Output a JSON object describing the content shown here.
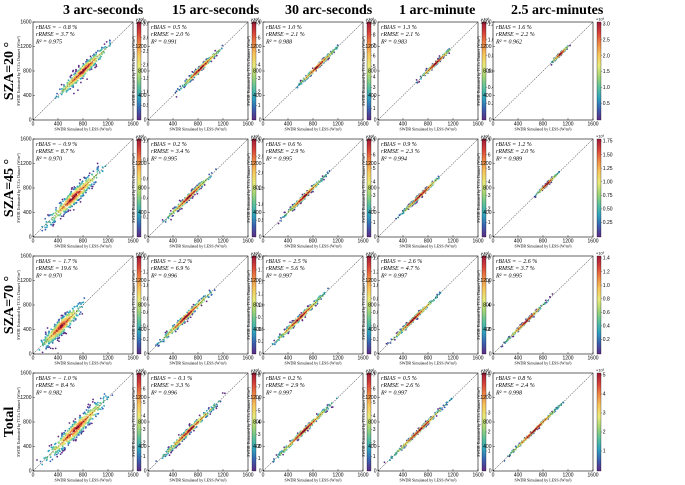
{
  "figure": {
    "columns": [
      "3 arc-seconds",
      "15 arc-seconds",
      "30 arc-seconds",
      "1 arc-minute",
      "2.5 arc-minutes"
    ],
    "rows": [
      "SZA=20 °",
      "SZA=45 °",
      "SZA=70 °",
      "Total"
    ],
    "xlabel": "SWDR Simulated by LESS (W/m²)",
    "ylabel": "SWDR Estimated by TCCs Dataset (W/m²)",
    "axis_ticks": [
      "0",
      "400",
      "800",
      "1200",
      "1600"
    ],
    "colorbar_exponent": "×10³",
    "stat_labels": {
      "rbias": "rBIAS = ",
      "rrmse": "rRMSE = ",
      "r2": "R² = "
    },
    "colormap": [
      "#5e2a84",
      "#3b5fb0",
      "#2fa3c0",
      "#5cc29b",
      "#a4d676",
      "#e8ea7a",
      "#f7c65c",
      "#f08a46",
      "#d8433a",
      "#9e1b3b"
    ]
  },
  "chart_data": {
    "type": "scatter",
    "subtype": "density_scatter_grid",
    "xlim": [
      0,
      1600
    ],
    "ylim": [
      0,
      1600
    ],
    "panels": [
      {
        "row": "SZA=20 °",
        "column": "3 arc-seconds",
        "rBIAS": "− 0.8 %",
        "rRMSE": "3.7 %",
        "R2": "0.975",
        "x_range": [
          250,
          1350
        ],
        "spread": 55,
        "colorbar_ticks": [
          "0.5",
          "1.0",
          "1.5",
          "2.0",
          "2.5",
          "3.0",
          "3.5"
        ],
        "colorbar_max": "3.5"
      },
      {
        "row": "SZA=20 °",
        "column": "15 arc-seconds",
        "rBIAS": "0.5 %",
        "rRMSE": "2.0 %",
        "R2": "0.991",
        "x_range": [
          380,
          1300
        ],
        "spread": 26,
        "colorbar_ticks": [
          "1",
          "2",
          "3",
          "4",
          "5",
          "6",
          "7"
        ],
        "colorbar_max": "7"
      },
      {
        "row": "SZA=20 °",
        "column": "30 arc-seconds",
        "rBIAS": "1.0 %",
        "rRMSE": "2.1 %",
        "R2": "0.988",
        "x_range": [
          450,
          1300
        ],
        "spread": 20,
        "colorbar_ticks": [
          "1",
          "2",
          "3",
          "4",
          "5",
          "6",
          "7",
          "8",
          "9"
        ],
        "colorbar_max": "9"
      },
      {
        "row": "SZA=20 °",
        "column": "1 arc-minute",
        "rBIAS": "1.3 %",
        "rRMSE": "2.1 %",
        "R2": "0.983",
        "x_range": [
          560,
          1280
        ],
        "spread": 16,
        "colorbar_ticks": [
          "0.2",
          "0.4",
          "0.6",
          "0.8",
          "1.0",
          "1.2"
        ],
        "colorbar_max": "1.2"
      },
      {
        "row": "SZA=20 °",
        "column": "2.5 arc-minutes",
        "rBIAS": "1.6 %",
        "rRMSE": "2.2 %",
        "R2": "0.962",
        "x_range": [
          900,
          1260
        ],
        "spread": 12,
        "colorbar_ticks": [
          "0.5",
          "1.0",
          "1.5",
          "2.0",
          "2.5",
          "3.0"
        ],
        "colorbar_max": "3.0"
      },
      {
        "row": "SZA=45 °",
        "column": "3 arc-seconds",
        "rBIAS": "− 0.9 %",
        "rRMSE": "8.7 %",
        "R2": "0.970",
        "x_range": [
          50,
          1250
        ],
        "spread": 70,
        "colorbar_ticks": [
          "0.2",
          "0.4",
          "0.6",
          "0.8",
          "1.0"
        ],
        "colorbar_max": "1.0"
      },
      {
        "row": "SZA=45 °",
        "column": "15 arc-seconds",
        "rBIAS": "0.2 %",
        "rRMSE": "3.4 %",
        "R2": "0.995",
        "x_range": [
          150,
          1150
        ],
        "spread": 28,
        "colorbar_ticks": [
          "0.5",
          "1.0",
          "1.5",
          "2.0",
          "2.5",
          "3.0"
        ],
        "colorbar_max": "3.0"
      },
      {
        "row": "SZA=45 °",
        "column": "30 arc-seconds",
        "rBIAS": "0.6 %",
        "rRMSE": "2.9 %",
        "R2": "0.995",
        "x_range": [
          200,
          1120
        ],
        "spread": 22,
        "colorbar_ticks": [
          "1",
          "2",
          "3",
          "4",
          "5",
          "6",
          "7"
        ],
        "colorbar_max": "7"
      },
      {
        "row": "SZA=45 °",
        "column": "1 arc-minute",
        "rBIAS": "0.9 %",
        "rRMSE": "2.3 %",
        "R2": "0.994",
        "x_range": [
          250,
          1120
        ],
        "spread": 18,
        "colorbar_ticks": [
          "1",
          "2",
          "3",
          "4",
          "5",
          "6",
          "7"
        ],
        "colorbar_max": "7"
      },
      {
        "row": "SZA=45 °",
        "column": "2.5 arc-minutes",
        "rBIAS": "1.2 %",
        "rRMSE": "2.0 %",
        "R2": "0.989",
        "x_range": [
          620,
          1100
        ],
        "spread": 12,
        "colorbar_ticks": [
          "0.25",
          "0.50",
          "0.75",
          "1.00",
          "1.25",
          "1.50",
          "1.75"
        ],
        "colorbar_max": "1.75"
      },
      {
        "row": "SZA=70 °",
        "column": "3 arc-seconds",
        "rBIAS": "− 1.7 %",
        "rRMSE": "19.6 %",
        "R2": "0.970",
        "x_range": [
          20,
          900
        ],
        "spread": 75,
        "colorbar_ticks": [
          "0.2",
          "0.4",
          "0.6",
          "0.8",
          "1.0",
          "1.2",
          "1.4"
        ],
        "colorbar_max": "1.4"
      },
      {
        "row": "SZA=70 °",
        "column": "15 arc-seconds",
        "rBIAS": "− 2.2 %",
        "rRMSE": "6.9 %",
        "R2": "0.996",
        "x_range": [
          30,
          1180
        ],
        "spread": 32,
        "colorbar_ticks": [
          "0.25",
          "0.50",
          "0.75",
          "1.00",
          "1.25",
          "1.50",
          "1.75",
          "2.00"
        ],
        "colorbar_max": "2.00"
      },
      {
        "row": "SZA=70 °",
        "column": "30 arc-seconds",
        "rBIAS": "− 2.5 %",
        "rRMSE": "5.6 %",
        "R2": "0.997",
        "x_range": [
          30,
          1150
        ],
        "spread": 26,
        "colorbar_ticks": [
          "0.2",
          "0.4",
          "0.6",
          "0.8",
          "1.0",
          "1.2",
          "1.4"
        ],
        "colorbar_max": "1.4"
      },
      {
        "row": "SZA=70 °",
        "column": "1 arc-minute",
        "rBIAS": "− 2.6 %",
        "rRMSE": "4.7 %",
        "R2": "0.997",
        "x_range": [
          40,
          1100
        ],
        "spread": 20,
        "colorbar_ticks": [
          "2",
          "4",
          "6",
          "8"
        ],
        "colorbar_max": "8"
      },
      {
        "row": "SZA=70 °",
        "column": "2.5 arc-minutes",
        "rBIAS": "− 2.6 %",
        "rRMSE": "3.7 %",
        "R2": "0.995",
        "x_range": [
          60,
          1000
        ],
        "spread": 14,
        "colorbar_ticks": [
          "0.2",
          "0.4",
          "0.6",
          "0.8",
          "1.0",
          "1.2",
          "1.4"
        ],
        "colorbar_max": "1.4"
      },
      {
        "row": "Total",
        "column": "3 arc-seconds",
        "rBIAS": "− 1.0 %",
        "rRMSE": "8.4 %",
        "R2": "0.982",
        "x_range": [
          20,
          1350
        ],
        "spread": 75,
        "colorbar_ticks": [
          "1",
          "2",
          "3",
          "4",
          "5",
          "6",
          "7"
        ],
        "colorbar_max": "7"
      },
      {
        "row": "Total",
        "column": "15 arc-seconds",
        "rBIAS": "− 0.1 %",
        "rRMSE": "3.3 %",
        "R2": "0.996",
        "x_range": [
          30,
          1300
        ],
        "spread": 30,
        "colorbar_ticks": [
          "1",
          "2",
          "3",
          "4",
          "5",
          "6",
          "7",
          "8"
        ],
        "colorbar_max": "8"
      },
      {
        "row": "Total",
        "column": "30 arc-seconds",
        "rBIAS": "0.2 %",
        "rRMSE": "2.9 %",
        "R2": "0.997",
        "x_range": [
          30,
          1300
        ],
        "spread": 24,
        "colorbar_ticks": [
          "1",
          "2",
          "3",
          "4",
          "5",
          "6",
          "7"
        ],
        "colorbar_max": "7"
      },
      {
        "row": "Total",
        "column": "1 arc-minute",
        "rBIAS": "0.5 %",
        "rRMSE": "2.6 %",
        "R2": "0.997",
        "x_range": [
          40,
          1280
        ],
        "spread": 18,
        "colorbar_ticks": [
          "1",
          "2",
          "3",
          "4",
          "5"
        ],
        "colorbar_max": "5"
      },
      {
        "row": "Total",
        "column": "2.5 arc-minutes",
        "rBIAS": "0.8 %",
        "rRMSE": "2.4 %",
        "R2": "0.998",
        "x_range": [
          60,
          1250
        ],
        "spread": 14,
        "colorbar_ticks": [
          "1",
          "2",
          "3",
          "4",
          "5"
        ],
        "colorbar_max": "5"
      }
    ]
  }
}
